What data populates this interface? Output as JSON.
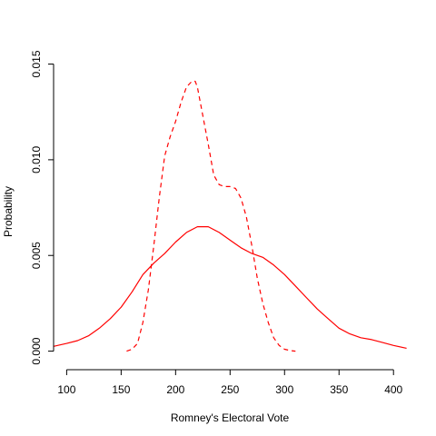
{
  "chart_data": {
    "type": "line",
    "xlabel": "Romney's Electoral Vote",
    "ylabel": "Probability",
    "xlim": [
      88,
      414
    ],
    "ylim": [
      -0.0004,
      0.0155
    ],
    "x_ticks": [
      100,
      150,
      200,
      250,
      300,
      350,
      400
    ],
    "x_tick_labels": [
      "100",
      "150",
      "200",
      "250",
      "300",
      "350",
      "400"
    ],
    "y_ticks": [
      0.0,
      0.005,
      0.01,
      0.015
    ],
    "y_tick_labels": [
      "0.000",
      "0.005",
      "0.010",
      "0.015"
    ],
    "grid": false,
    "legend": "none",
    "series": [
      {
        "color": "#ff0000",
        "style": "solid",
        "x": [
          88,
          100,
          110,
          120,
          130,
          140,
          150,
          160,
          170,
          180,
          190,
          200,
          210,
          220,
          230,
          240,
          250,
          260,
          270,
          280,
          290,
          300,
          310,
          320,
          330,
          340,
          350,
          360,
          370,
          380,
          390,
          400,
          412
        ],
        "y": [
          0.00025,
          0.0004,
          0.00055,
          0.0008,
          0.0012,
          0.0017,
          0.0023,
          0.0031,
          0.004,
          0.0046,
          0.0051,
          0.0057,
          0.0062,
          0.0065,
          0.0065,
          0.0062,
          0.0058,
          0.0054,
          0.0051,
          0.0049,
          0.0045,
          0.004,
          0.0034,
          0.0028,
          0.0022,
          0.0017,
          0.0012,
          0.0009,
          0.0007,
          0.0006,
          0.00045,
          0.0003,
          0.00015
        ]
      },
      {
        "color": "#ff0000",
        "style": "dashed",
        "x": [
          155,
          160,
          165,
          170,
          175,
          180,
          185,
          190,
          195,
          200,
          205,
          210,
          215,
          218,
          220,
          225,
          230,
          235,
          240,
          245,
          250,
          255,
          260,
          265,
          270,
          275,
          280,
          285,
          290,
          295,
          300,
          305,
          310
        ],
        "y": [
          0.0,
          0.0001,
          0.0004,
          0.0015,
          0.0032,
          0.0055,
          0.008,
          0.0102,
          0.0112,
          0.012,
          0.013,
          0.0138,
          0.0141,
          0.0141,
          0.0138,
          0.0123,
          0.0108,
          0.0092,
          0.0087,
          0.0086,
          0.0086,
          0.0085,
          0.008,
          0.007,
          0.0055,
          0.0038,
          0.0025,
          0.0015,
          0.0007,
          0.0003,
          0.0001,
          3e-05,
          0.0
        ]
      }
    ]
  }
}
